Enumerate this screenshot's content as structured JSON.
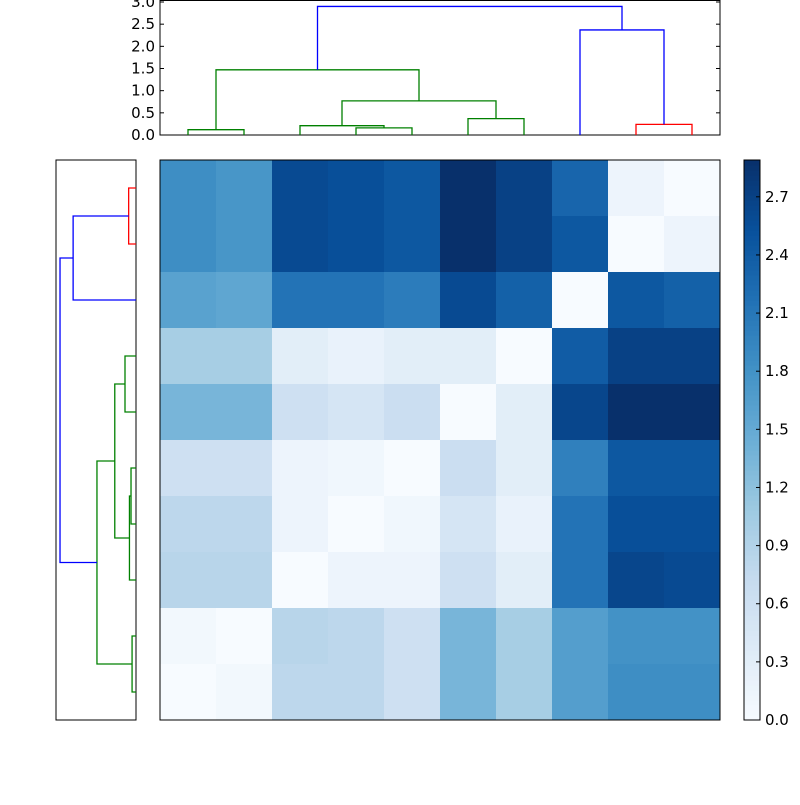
{
  "chart_data": [
    {
      "type": "heatmap",
      "colormap": "Blues",
      "vlim": [
        0,
        2.89
      ],
      "colorbar_ticks": [
        "0.0",
        "0.3",
        "0.6",
        "0.9",
        "1.2",
        "1.5",
        "1.8",
        "2.1",
        "2.4",
        "2.7"
      ],
      "colorbar_tick_values": [
        0,
        0.3,
        0.6,
        0.9,
        1.2,
        1.5,
        1.8,
        2.1,
        2.4,
        2.7
      ],
      "values": [
        [
          1.85,
          1.75,
          2.6,
          2.55,
          2.45,
          2.89,
          2.7,
          2.3,
          0.15,
          0.0
        ],
        [
          1.85,
          1.75,
          2.6,
          2.55,
          2.45,
          2.89,
          2.7,
          2.45,
          0.0,
          0.15
        ],
        [
          1.6,
          1.55,
          2.15,
          2.15,
          2.05,
          2.6,
          2.35,
          0.0,
          2.45,
          2.35
        ],
        [
          1.0,
          1.0,
          0.3,
          0.2,
          0.3,
          0.3,
          0.0,
          2.4,
          2.7,
          2.7
        ],
        [
          1.35,
          1.35,
          0.6,
          0.5,
          0.65,
          0.0,
          0.3,
          2.65,
          2.89,
          2.89
        ],
        [
          0.6,
          0.6,
          0.15,
          0.1,
          0.0,
          0.65,
          0.3,
          2.0,
          2.45,
          2.45
        ],
        [
          0.8,
          0.8,
          0.15,
          0.0,
          0.1,
          0.5,
          0.2,
          2.15,
          2.55,
          2.55
        ],
        [
          0.85,
          0.85,
          0.0,
          0.15,
          0.15,
          0.6,
          0.3,
          2.15,
          2.65,
          2.6
        ],
        [
          0.07,
          0.0,
          0.85,
          0.8,
          0.6,
          1.35,
          1.0,
          1.65,
          1.8,
          1.8
        ],
        [
          0.0,
          0.07,
          0.8,
          0.8,
          0.6,
          1.35,
          1.0,
          1.65,
          1.85,
          1.85
        ]
      ]
    },
    {
      "type": "dendrogram",
      "orientation": "top",
      "ylim": [
        0,
        3.0
      ],
      "yticks": [
        "0.0",
        "0.5",
        "1.0",
        "1.5",
        "2.0",
        "2.5",
        "3.0"
      ],
      "ytick_values": [
        0,
        0.5,
        1.0,
        1.5,
        2.0,
        2.5,
        3.0
      ],
      "links": [
        {
          "icoord": [
            5,
            5,
            15,
            15
          ],
          "dcoord": [
            0,
            0.12,
            0.12,
            0
          ],
          "color": "#008000"
        },
        {
          "icoord": [
            35,
            35,
            45,
            45
          ],
          "dcoord": [
            0,
            0.16,
            0.16,
            0
          ],
          "color": "#008000"
        },
        {
          "icoord": [
            25,
            25,
            40,
            40
          ],
          "dcoord": [
            0,
            0.21,
            0.21,
            0.16
          ],
          "color": "#008000"
        },
        {
          "icoord": [
            55,
            55,
            65,
            65
          ],
          "dcoord": [
            0,
            0.37,
            0.37,
            0
          ],
          "color": "#008000"
        },
        {
          "icoord": [
            32.5,
            32.5,
            60,
            60
          ],
          "dcoord": [
            0.21,
            0.77,
            0.77,
            0.37
          ],
          "color": "#008000"
        },
        {
          "icoord": [
            10,
            10,
            46.25,
            46.25
          ],
          "dcoord": [
            0.12,
            1.47,
            1.47,
            0.77
          ],
          "color": "#008000"
        },
        {
          "icoord": [
            85,
            85,
            95,
            95
          ],
          "dcoord": [
            0,
            0.24,
            0.24,
            0
          ],
          "color": "#ff0000"
        },
        {
          "icoord": [
            75,
            75,
            90,
            90
          ],
          "dcoord": [
            0,
            2.37,
            2.37,
            0.24
          ],
          "color": "#0000ff"
        },
        {
          "icoord": [
            28.125,
            28.125,
            82.5,
            82.5
          ],
          "dcoord": [
            1.47,
            2.9,
            2.9,
            2.37
          ],
          "color": "#0000ff"
        }
      ]
    },
    {
      "type": "dendrogram",
      "orientation": "left",
      "links": [
        {
          "icoord": [
            5,
            5,
            15,
            15
          ],
          "dcoord": [
            0,
            0.28,
            0.28,
            0
          ],
          "color": "#ff0000"
        },
        {
          "icoord": [
            10,
            10,
            25,
            25
          ],
          "dcoord": [
            0.28,
            2.4,
            2.4,
            0
          ],
          "color": "#0000ff"
        },
        {
          "icoord": [
            35,
            35,
            45,
            45
          ],
          "dcoord": [
            0,
            0.42,
            0.42,
            0
          ],
          "color": "#008000"
        },
        {
          "icoord": [
            55,
            55,
            65,
            65
          ],
          "dcoord": [
            0,
            0.19,
            0.19,
            0
          ],
          "color": "#008000"
        },
        {
          "icoord": [
            60,
            60,
            75,
            75
          ],
          "dcoord": [
            0.19,
            0.25,
            0.25,
            0
          ],
          "color": "#008000"
        },
        {
          "icoord": [
            40,
            40,
            67.5,
            67.5
          ],
          "dcoord": [
            0.42,
            0.81,
            0.81,
            0.25
          ],
          "color": "#008000"
        },
        {
          "icoord": [
            85,
            85,
            95,
            95
          ],
          "dcoord": [
            0,
            0.15,
            0.15,
            0
          ],
          "color": "#008000"
        },
        {
          "icoord": [
            53.75,
            53.75,
            90,
            90
          ],
          "dcoord": [
            0.81,
            1.49,
            1.49,
            0.15
          ],
          "color": "#008000"
        },
        {
          "icoord": [
            17.5,
            17.5,
            71.875,
            71.875
          ],
          "dcoord": [
            2.4,
            2.9,
            2.9,
            1.49
          ],
          "color": "#0000ff"
        }
      ]
    }
  ]
}
